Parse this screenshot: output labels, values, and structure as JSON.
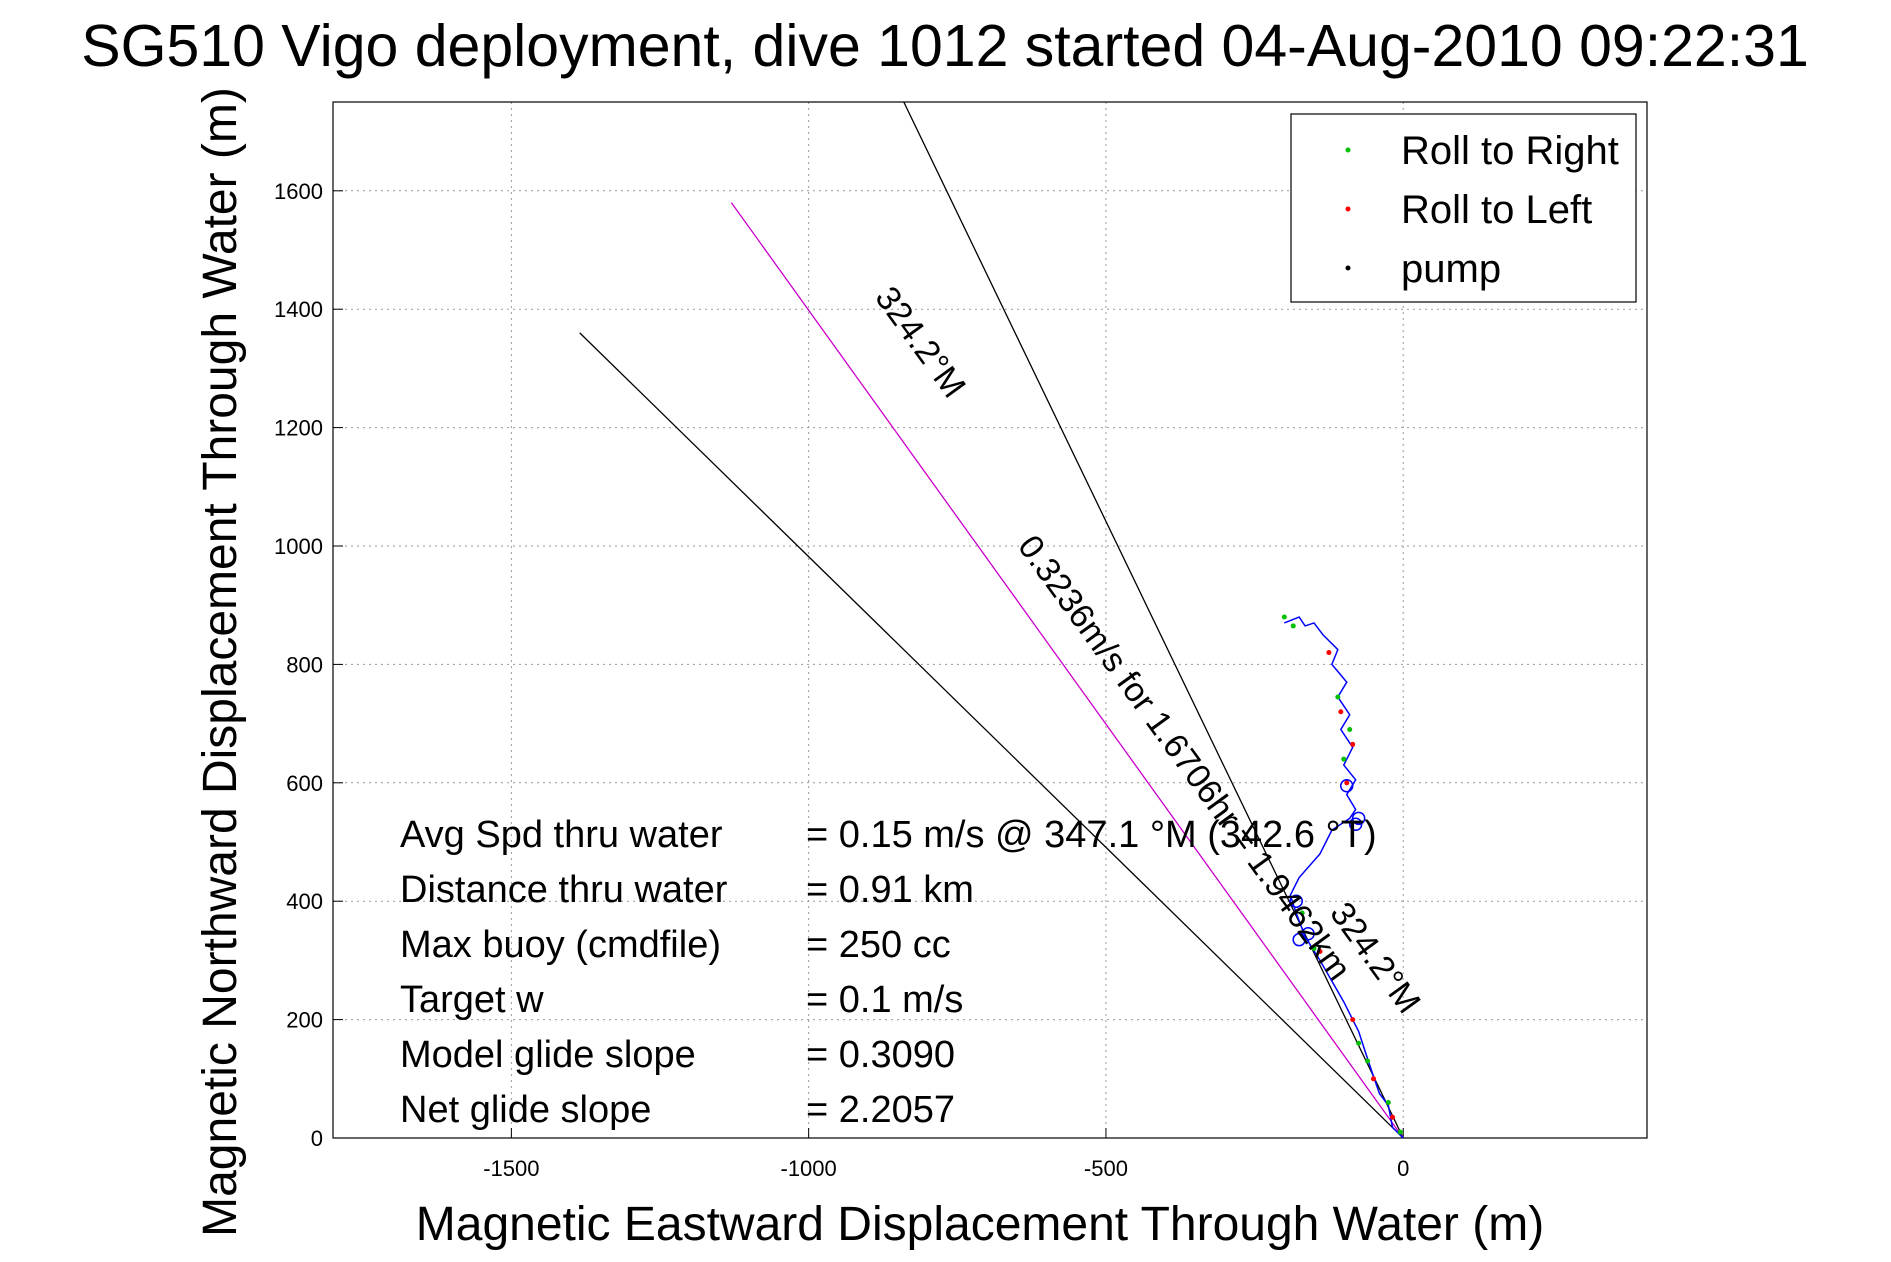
{
  "chart_data": {
    "type": "line",
    "title": "SG510 Vigo deployment, dive 1012 started 04-Aug-2010 09:22:31",
    "xlabel": "Magnetic Eastward Displacement Through Water (m)",
    "ylabel": "Magnetic Northward Displacement Through Water (m)",
    "xlim": [
      -1800,
      410
    ],
    "ylim": [
      0,
      1750
    ],
    "xticks": [
      -1500,
      -1000,
      -500,
      0
    ],
    "yticks": [
      0,
      200,
      400,
      600,
      800,
      1000,
      1200,
      1400,
      1600
    ],
    "grid": true,
    "legend": {
      "position": "top-right",
      "entries": [
        {
          "label": "Roll to Right",
          "color": "#00c000"
        },
        {
          "label": "Roll to Left",
          "color": "#ff0000"
        },
        {
          "label": "pump",
          "color": "#000000"
        }
      ]
    },
    "reference_lines": [
      {
        "color": "#000000",
        "points": [
          [
            0,
            0
          ],
          [
            -840,
            1750
          ]
        ]
      },
      {
        "color": "#000000",
        "points": [
          [
            0,
            0
          ],
          [
            -1385,
            1360
          ]
        ]
      },
      {
        "color": "#cc00cc",
        "points": [
          [
            0,
            0
          ],
          [
            -1130,
            1580
          ]
        ]
      }
    ],
    "track": {
      "color": "#0000ff",
      "points": [
        [
          0,
          0
        ],
        [
          -18,
          18
        ],
        [
          -25,
          55
        ],
        [
          -40,
          75
        ],
        [
          -52,
          110
        ],
        [
          -62,
          140
        ],
        [
          -75,
          180
        ],
        [
          -100,
          230
        ],
        [
          -120,
          265
        ],
        [
          -140,
          300
        ],
        [
          -165,
          340
        ],
        [
          -180,
          380
        ],
        [
          -190,
          410
        ],
        [
          -175,
          440
        ],
        [
          -140,
          480
        ],
        [
          -120,
          520
        ],
        [
          -90,
          540
        ],
        [
          -80,
          555
        ],
        [
          -95,
          580
        ],
        [
          -80,
          605
        ],
        [
          -100,
          630
        ],
        [
          -85,
          660
        ],
        [
          -105,
          690
        ],
        [
          -90,
          715
        ],
        [
          -110,
          745
        ],
        [
          -95,
          770
        ],
        [
          -120,
          800
        ],
        [
          -110,
          825
        ],
        [
          -135,
          850
        ],
        [
          -150,
          870
        ],
        [
          -165,
          865
        ],
        [
          -175,
          880
        ],
        [
          -200,
          870
        ]
      ]
    },
    "track_markers": [
      [
        -80,
        530
      ],
      [
        -95,
        595
      ],
      [
        -180,
        400
      ],
      [
        -160,
        345
      ],
      [
        -175,
        335
      ],
      [
        -75,
        540
      ]
    ],
    "roll_right": [
      [
        -5,
        10
      ],
      [
        -25,
        60
      ],
      [
        -60,
        130
      ],
      [
        -75,
        160
      ],
      [
        -150,
        320
      ],
      [
        -170,
        380
      ],
      [
        -200,
        880
      ],
      [
        -185,
        865
      ],
      [
        -110,
        745
      ],
      [
        -90,
        690
      ],
      [
        -100,
        640
      ]
    ],
    "roll_left": [
      [
        -18,
        35
      ],
      [
        -50,
        100
      ],
      [
        -85,
        200
      ],
      [
        -140,
        315
      ],
      [
        -125,
        820
      ],
      [
        -105,
        720
      ],
      [
        -85,
        665
      ],
      [
        -95,
        600
      ]
    ],
    "annotations": [
      {
        "text": "324.2°M",
        "anchor": [
          -890,
          1420
        ],
        "angle": 54
      },
      {
        "text": "0.3236m/s for 1.6706hr = 1.9462km",
        "anchor": [
          -650,
          1000
        ],
        "angle": 54
      },
      {
        "text": "324.2°M",
        "anchor": [
          -125,
          380
        ],
        "angle": 54
      }
    ],
    "stats": [
      {
        "label": "Avg Spd thru water",
        "value": "=  0.15 m/s @ 347.1 °M (342.6 °T)"
      },
      {
        "label": "Distance thru water",
        "value": "=  0.91 km"
      },
      {
        "label": "Max buoy (cmdfile)",
        "value": "= 250 cc"
      },
      {
        "label": "Target w",
        "value": "= 0.1 m/s"
      },
      {
        "label": "Model glide slope",
        "value": "= 0.3090"
      },
      {
        "label": "Net glide slope",
        "value": "= 2.2057"
      }
    ]
  }
}
